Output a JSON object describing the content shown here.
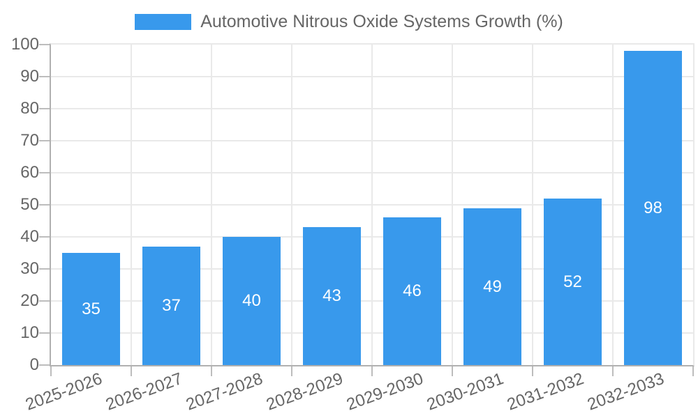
{
  "chart_data": {
    "type": "bar",
    "title": "Automotive Nitrous Oxide Systems Growth (%)",
    "legend": {
      "position": "top",
      "entries": [
        "Automotive Nitrous Oxide Systems Growth (%)"
      ]
    },
    "categories": [
      "2025-2026",
      "2026-2027",
      "2027-2028",
      "2028-2029",
      "2029-2030",
      "2030-2031",
      "2031-2032",
      "2032-2033"
    ],
    "values": [
      35,
      37,
      40,
      43,
      46,
      49,
      52,
      98
    ],
    "data_labels": [
      "35",
      "37",
      "40",
      "43",
      "46",
      "49",
      "52",
      "98"
    ],
    "xlabel": "",
    "ylabel": "",
    "ylim": [
      0,
      100
    ],
    "yticks": [
      0,
      10,
      20,
      30,
      40,
      50,
      60,
      70,
      80,
      90,
      100
    ],
    "grid": true,
    "x_label_rotation_deg": -20,
    "colors": {
      "bar": "#3899ec",
      "tick_text": "#666666",
      "legend_text": "#666666",
      "value_label_text": "#ffffff",
      "grid_line": "#e9e9e9",
      "axis_line": "#b0b0b0",
      "tick_mark": "#bdbdbd",
      "background": "#ffffff"
    }
  }
}
